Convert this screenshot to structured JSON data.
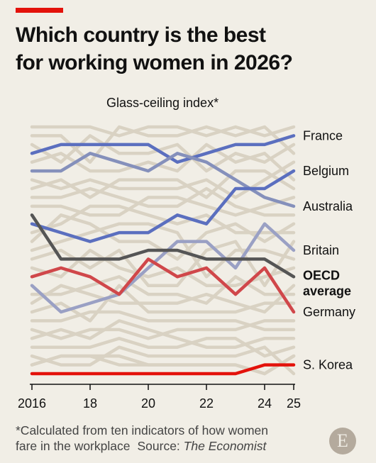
{
  "header": {
    "title": "Which country is the best\nfor working women in 2026?"
  },
  "chart_data": {
    "type": "line",
    "title": "Glass-ceiling index*",
    "x": [
      2016,
      2017,
      2018,
      2019,
      2020,
      2021,
      2022,
      2023,
      2024,
      2025
    ],
    "x_tick_labels": [
      "2016",
      "18",
      "20",
      "22",
      "24",
      "25"
    ],
    "x_tick_values": [
      2016,
      2018,
      2020,
      2022,
      2024,
      2025
    ],
    "y_axis": "rank, 1 = best (29 countries; unlabelled)",
    "ylim": [
      1,
      29
    ],
    "grid": false,
    "background_series_count": 24,
    "series": [
      {
        "name": "France",
        "label": "France",
        "color": "#5b6fbf",
        "values": [
          4,
          3,
          3,
          3,
          3,
          5,
          4,
          3,
          3,
          2
        ]
      },
      {
        "name": "Australia",
        "label": "Australia",
        "color": "#8590bb",
        "values": [
          6,
          6,
          4,
          5,
          6,
          4,
          5,
          7,
          9,
          10
        ]
      },
      {
        "name": "Belgium",
        "label": "Belgium",
        "color": "#5b6fbf",
        "values": [
          12,
          13,
          14,
          13,
          13,
          11,
          12,
          8,
          8,
          6
        ]
      },
      {
        "name": "Britain",
        "label": "Britain",
        "color": "#9aa0c4",
        "values": [
          19,
          22,
          21,
          20,
          17,
          14,
          14,
          17,
          12,
          15
        ]
      },
      {
        "name": "OECD average",
        "label": "OECD\naverage",
        "color": "#555555",
        "values": [
          11,
          16,
          16,
          16,
          15,
          15,
          16,
          16,
          16,
          18
        ]
      },
      {
        "name": "Germany",
        "label": "Germany",
        "color": "#d0474a",
        "values": [
          18,
          17,
          18,
          20,
          16,
          18,
          17,
          20,
          17,
          22
        ]
      },
      {
        "name": "S. Korea",
        "label": "S. Korea",
        "color": "#e3120b",
        "values": [
          29,
          29,
          29,
          29,
          29,
          29,
          29,
          29,
          28,
          28
        ]
      }
    ]
  },
  "footnote": {
    "text": "*Calculated from ten indicators of how women",
    "text2": "fare in the workplace",
    "source_label": "Source:",
    "source_name": "The Economist"
  },
  "logo": {
    "letter": "E"
  }
}
